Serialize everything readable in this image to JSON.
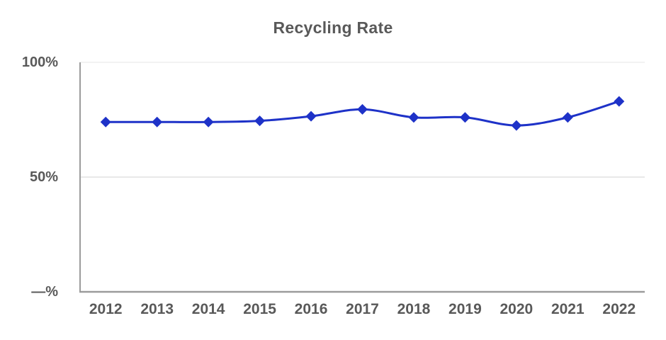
{
  "chart_data": {
    "type": "line",
    "title": "Recycling Rate",
    "categories": [
      "2012",
      "2013",
      "2014",
      "2015",
      "2016",
      "2017",
      "2018",
      "2019",
      "2020",
      "2021",
      "2022"
    ],
    "series": [
      {
        "name": "Recycling Rate",
        "values": [
          74,
          74,
          74,
          74.5,
          76.5,
          79.5,
          76,
          76,
          72.5,
          76,
          83
        ]
      }
    ],
    "xlabel": "",
    "ylabel": "",
    "ylim": [
      0,
      100
    ],
    "y_ticks": [
      {
        "value": 100,
        "label": "100%"
      },
      {
        "value": 50,
        "label": "50%"
      },
      {
        "value": 0,
        "label": "—%"
      }
    ],
    "legend": "none",
    "grid": true,
    "smooth": true,
    "marker": "diamond",
    "colors": {
      "line": "#1e32c8",
      "marker": "#1e32c8",
      "text": "#595959",
      "axis": "#9b9b9b",
      "grid_major": "#e8e8e8",
      "grid_top": "#f2f2f2",
      "background": "#ffffff"
    }
  }
}
